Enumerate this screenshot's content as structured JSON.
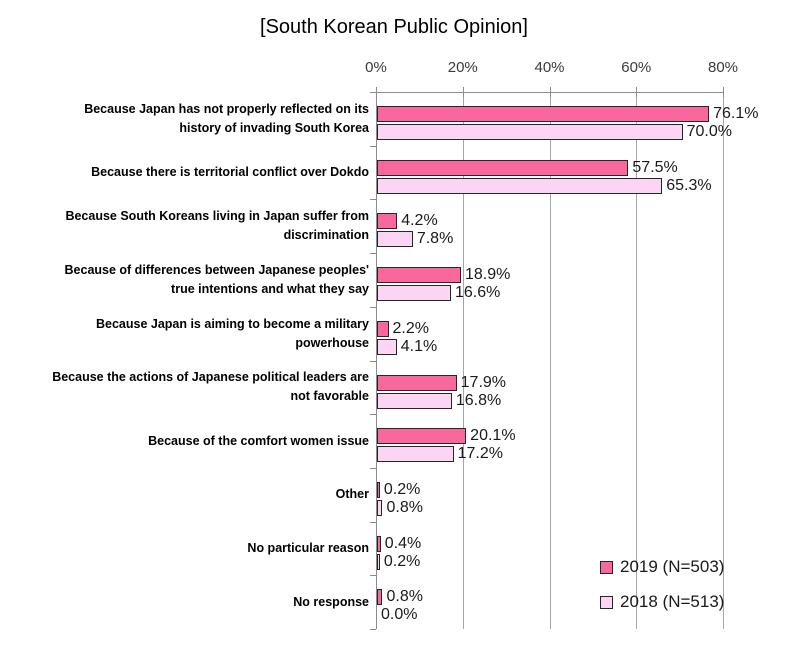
{
  "chart_data": {
    "type": "bar",
    "orientation": "horizontal",
    "title": "[South Korean Public Opinion]",
    "x_axis": {
      "position": "top",
      "min": 0,
      "max": 80,
      "tick_values": [
        0,
        20,
        40,
        60,
        80
      ],
      "tick_labels": [
        "0%",
        "20%",
        "40%",
        "60%",
        "80%"
      ]
    },
    "grid": true,
    "legend_position": "bottom-right",
    "categories": [
      {
        "label": "Because Japan has not properly reflected on its history of invading South Korea",
        "lines": [
          "Because Japan has not properly reflected on its",
          "history of invading South Korea"
        ]
      },
      {
        "label": "Because there is territorial conflict over Dokdo",
        "lines": [
          "Because there is territorial conflict over Dokdo"
        ]
      },
      {
        "label": "Because South Koreans living in Japan suffer from discrimination",
        "lines": [
          "Because South Koreans living in Japan suffer from",
          "discrimination"
        ]
      },
      {
        "label": "Because of differences between Japanese peoples' true intentions and what they say",
        "lines": [
          "Because of differences between Japanese peoples'",
          "true intentions and what they say"
        ]
      },
      {
        "label": "Because Japan is aiming to become a military powerhouse",
        "lines": [
          "Because Japan is aiming to become a military",
          "powerhouse"
        ]
      },
      {
        "label": "Because the actions of Japanese political leaders are not favorable",
        "lines": [
          "Because the actions of Japanese political leaders are",
          "not favorable"
        ]
      },
      {
        "label": "Because of the comfort women issue",
        "lines": [
          "Because of the comfort women issue"
        ]
      },
      {
        "label": "Other",
        "lines": [
          "Other"
        ]
      },
      {
        "label": "No particular reason",
        "lines": [
          "No particular reason"
        ]
      },
      {
        "label": "No response",
        "lines": [
          "No response"
        ]
      }
    ],
    "series": [
      {
        "name": "2019 (N=503)",
        "color": "#F8689D",
        "values": [
          76.1,
          57.5,
          4.2,
          18.9,
          2.2,
          17.9,
          20.1,
          0.2,
          0.4,
          0.8
        ]
      },
      {
        "name": "2018 (N=513)",
        "color": "#FBD5F3",
        "values": [
          70.0,
          65.3,
          7.8,
          16.6,
          4.1,
          16.8,
          17.2,
          0.8,
          0.2,
          0.0
        ]
      }
    ],
    "value_label_format": "one-decimal-percent",
    "colors": {
      "bar_border": "#262626",
      "gridline": "#A6A6A6",
      "axis": "#8C8C8C",
      "text": "#000000"
    }
  }
}
